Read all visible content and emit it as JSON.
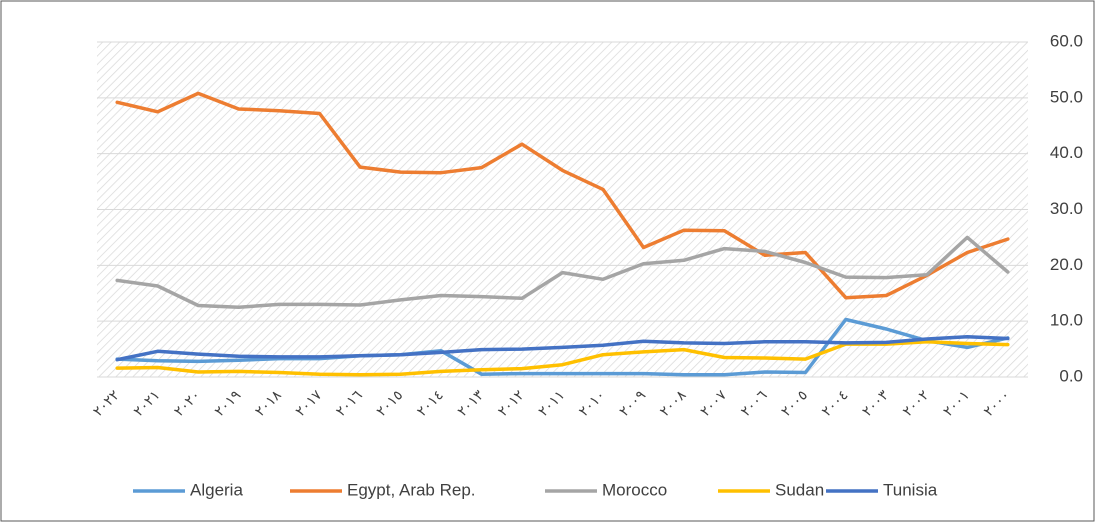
{
  "chart_data": {
    "type": "line",
    "categories": [
      "٢٠٢٢",
      "٢٠٢١",
      "٢٠٢٠",
      "٢٠١٩",
      "٢٠١٨",
      "٢٠١٧",
      "٢٠١٦",
      "٢٠١٥",
      "٢٠١٤",
      "٢٠١٣",
      "٢٠١٢",
      "٢٠١١",
      "٢٠١٠",
      "٢٠٠٩",
      "٢٠٠٨",
      "٢٠٠٧",
      "٢٠٠٦",
      "٢٠٠٥",
      "٢٠٠٤",
      "٢٠٠٣",
      "٢٠٠٢",
      "٢٠٠١",
      "٢٠٠٠"
    ],
    "series": [
      {
        "name": "Algeria",
        "color": "#5b9bd5",
        "values": [
          3.2,
          2.9,
          2.8,
          3.0,
          3.3,
          3.3,
          3.8,
          4.0,
          4.7,
          0.5,
          0.6,
          0.6,
          0.6,
          0.6,
          0.4,
          0.4,
          0.9,
          0.8,
          10.3,
          8.6,
          6.5,
          5.3,
          7.0
        ]
      },
      {
        "name": "Egypt, Arab Rep.",
        "color": "#ed7d31",
        "values": [
          49.2,
          47.5,
          50.8,
          48.0,
          47.7,
          47.2,
          37.6,
          36.7,
          36.6,
          37.5,
          41.7,
          37.0,
          33.6,
          23.2,
          26.3,
          26.2,
          21.8,
          22.3,
          14.2,
          14.6,
          18.2,
          22.3,
          24.7
        ]
      },
      {
        "name": "Morocco",
        "color": "#a5a5a5",
        "values": [
          17.3,
          16.3,
          12.8,
          12.5,
          13.0,
          13.0,
          12.9,
          13.8,
          14.6,
          14.4,
          14.1,
          18.7,
          17.5,
          20.3,
          20.9,
          23.0,
          22.5,
          20.5,
          17.9,
          17.8,
          18.3,
          25.0,
          18.8
        ]
      },
      {
        "name": "Sudan",
        "color": "#ffc000",
        "values": [
          1.6,
          1.7,
          0.9,
          1.0,
          0.8,
          0.5,
          0.4,
          0.5,
          1.0,
          1.3,
          1.5,
          2.2,
          4.0,
          4.5,
          4.9,
          3.5,
          3.4,
          3.2,
          5.9,
          5.9,
          6.3,
          6.0,
          5.8
        ]
      },
      {
        "name": "Tunisia",
        "color": "#4472c4",
        "values": [
          3.1,
          4.6,
          4.1,
          3.7,
          3.6,
          3.6,
          3.8,
          4.0,
          4.4,
          4.9,
          5.0,
          5.3,
          5.7,
          6.4,
          6.1,
          6.0,
          6.3,
          6.3,
          6.1,
          6.2,
          6.8,
          7.2,
          6.9
        ]
      }
    ],
    "ylim": [
      0,
      60
    ],
    "yticks": [
      {
        "value": 0,
        "label": "0.0"
      },
      {
        "value": 10,
        "label": "10.0"
      },
      {
        "value": 20,
        "label": "20.0"
      },
      {
        "value": 30,
        "label": "30.0"
      },
      {
        "value": 40,
        "label": "40.0"
      },
      {
        "value": 50,
        "label": "50.0"
      },
      {
        "value": 60,
        "label": "60.0"
      }
    ],
    "grid": true,
    "legend": "bottom"
  }
}
